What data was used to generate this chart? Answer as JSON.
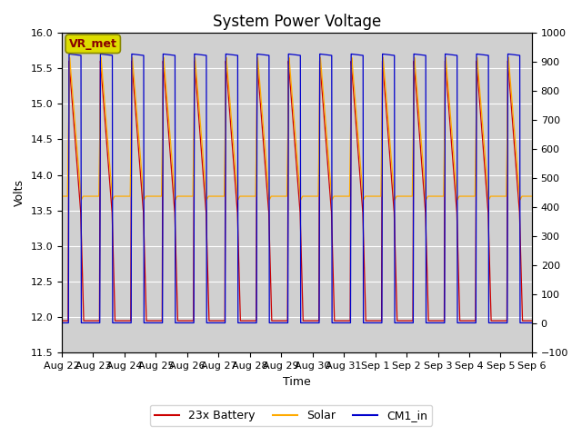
{
  "title": "System Power Voltage",
  "xlabel": "Time",
  "ylabel_left": "Volts",
  "ylim_left": [
    11.5,
    16.0
  ],
  "ylim_right": [
    -100,
    1000
  ],
  "yticks_left": [
    11.5,
    12.0,
    12.5,
    13.0,
    13.5,
    14.0,
    14.5,
    15.0,
    15.5,
    16.0
  ],
  "yticks_right": [
    -100,
    0,
    100,
    200,
    300,
    400,
    500,
    600,
    700,
    800,
    900,
    1000
  ],
  "x_date_labels": [
    "Aug 22",
    "Aug 23",
    "Aug 24",
    "Aug 25",
    "Aug 26",
    "Aug 27",
    "Aug 28",
    "Aug 29",
    "Aug 30",
    "Aug 31",
    "Sep 1",
    "Sep 2",
    "Sep 3",
    "Sep 4",
    "Sep 5",
    "Sep 6"
  ],
  "n_days": 15,
  "color_battery": "#cc0000",
  "color_solar": "#ffaa00",
  "color_cm1": "#0000cc",
  "background_color": "#d0d0d0",
  "legend_entries": [
    "23x Battery",
    "Solar",
    "CM1_in"
  ],
  "vr_met_label": "VR_met",
  "vr_met_box_color": "#dddd00",
  "vr_met_text_color": "#880000",
  "grid_color": "#bbbbbb",
  "title_fontsize": 12,
  "label_fontsize": 9,
  "tick_fontsize": 8,
  "legend_fontsize": 9
}
